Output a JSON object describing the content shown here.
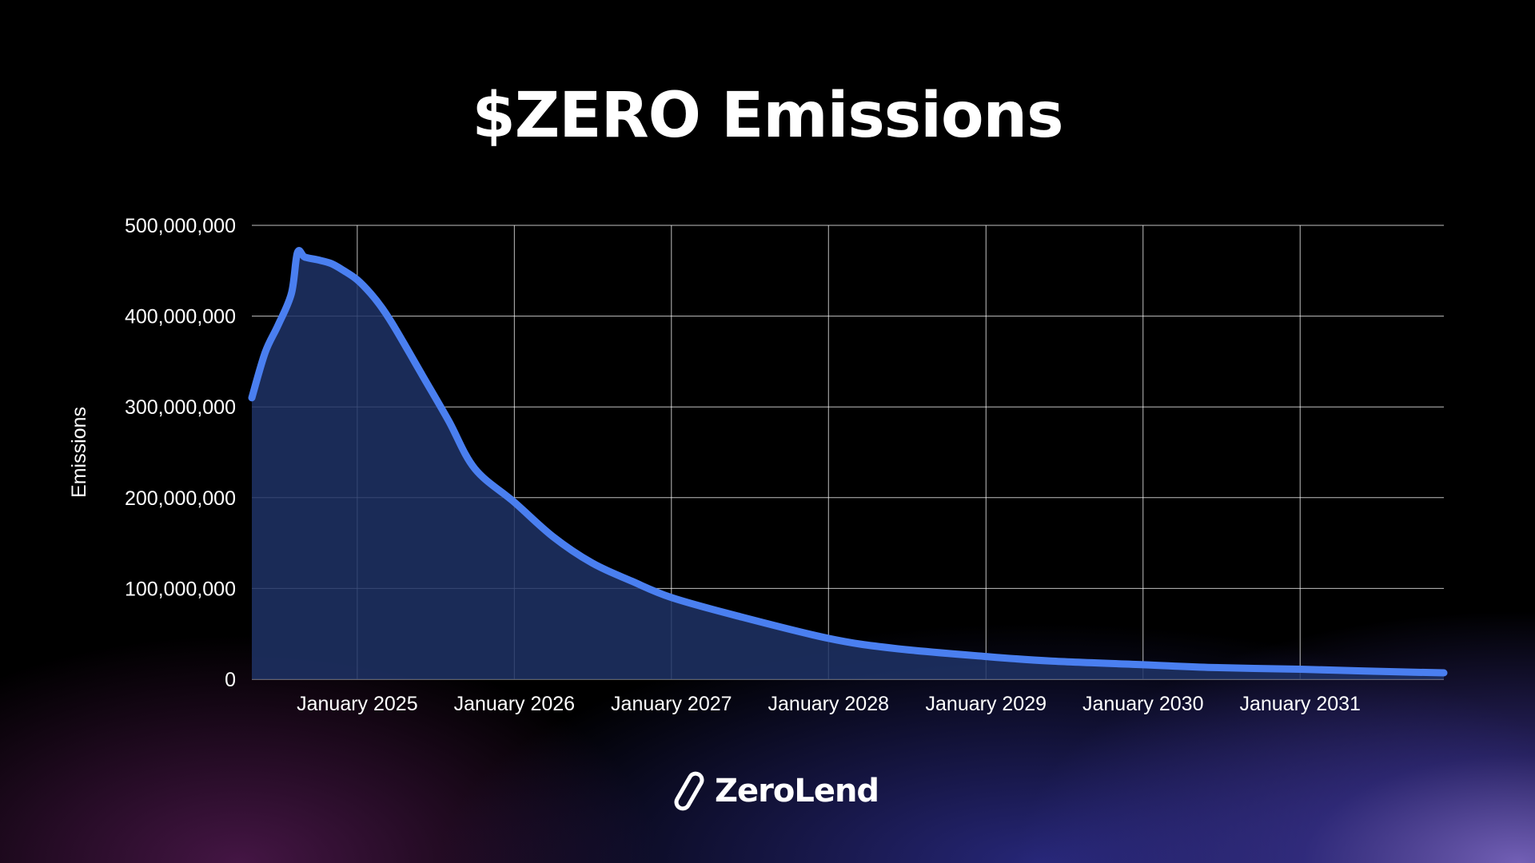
{
  "title": "$ZERO Emissions",
  "brand": {
    "name": "ZeroLend",
    "icon": "paperclip-link-icon"
  },
  "colors": {
    "line": "#4a7ff0",
    "area": "#1f3266",
    "grid": "#ffffff",
    "text": "#ffffff"
  },
  "chart_data": {
    "type": "area",
    "title": "$ZERO Emissions",
    "xlabel": "",
    "ylabel": "Emissions",
    "ylim": [
      0,
      500000000
    ],
    "xlim": [
      "2024-05-01",
      "2031-12-01"
    ],
    "yticks": [
      0,
      100000000,
      200000000,
      300000000,
      400000000,
      500000000
    ],
    "ytick_labels": [
      "0",
      "100,000,000",
      "200,000,000",
      "300,000,000",
      "400,000,000",
      "500,000,000"
    ],
    "xticks": [
      "2025-01-01",
      "2026-01-01",
      "2027-01-01",
      "2028-01-01",
      "2029-01-01",
      "2030-01-01",
      "2031-01-01"
    ],
    "xtick_labels": [
      "January 2025",
      "January 2026",
      "January 2027",
      "January 2028",
      "January 2029",
      "January 2030",
      "January 2031"
    ],
    "grid": true,
    "legend": "none",
    "series": [
      {
        "x": [
          "2024-05-01",
          "2024-06-01",
          "2024-07-01",
          "2024-08-01",
          "2024-08-15",
          "2024-09-01",
          "2024-10-01",
          "2024-11-01",
          "2024-12-01",
          "2025-01-01",
          "2025-02-01",
          "2025-03-01",
          "2025-04-01",
          "2025-06-01",
          "2025-08-01",
          "2025-10-01",
          "2026-01-01",
          "2026-04-01",
          "2026-07-01",
          "2026-10-01",
          "2027-01-01",
          "2027-06-01",
          "2028-01-01",
          "2028-06-01",
          "2029-01-01",
          "2029-06-01",
          "2030-01-01",
          "2030-06-01",
          "2031-01-01",
          "2031-06-01",
          "2031-12-01"
        ],
        "y": [
          310000000,
          360000000,
          390000000,
          425000000,
          470000000,
          465000000,
          462000000,
          458000000,
          450000000,
          440000000,
          425000000,
          408000000,
          385000000,
          335000000,
          285000000,
          232000000,
          195000000,
          157000000,
          128000000,
          108000000,
          90000000,
          70000000,
          45000000,
          34000000,
          25000000,
          20000000,
          16000000,
          13000000,
          11000000,
          9000000,
          7000000
        ]
      }
    ]
  }
}
